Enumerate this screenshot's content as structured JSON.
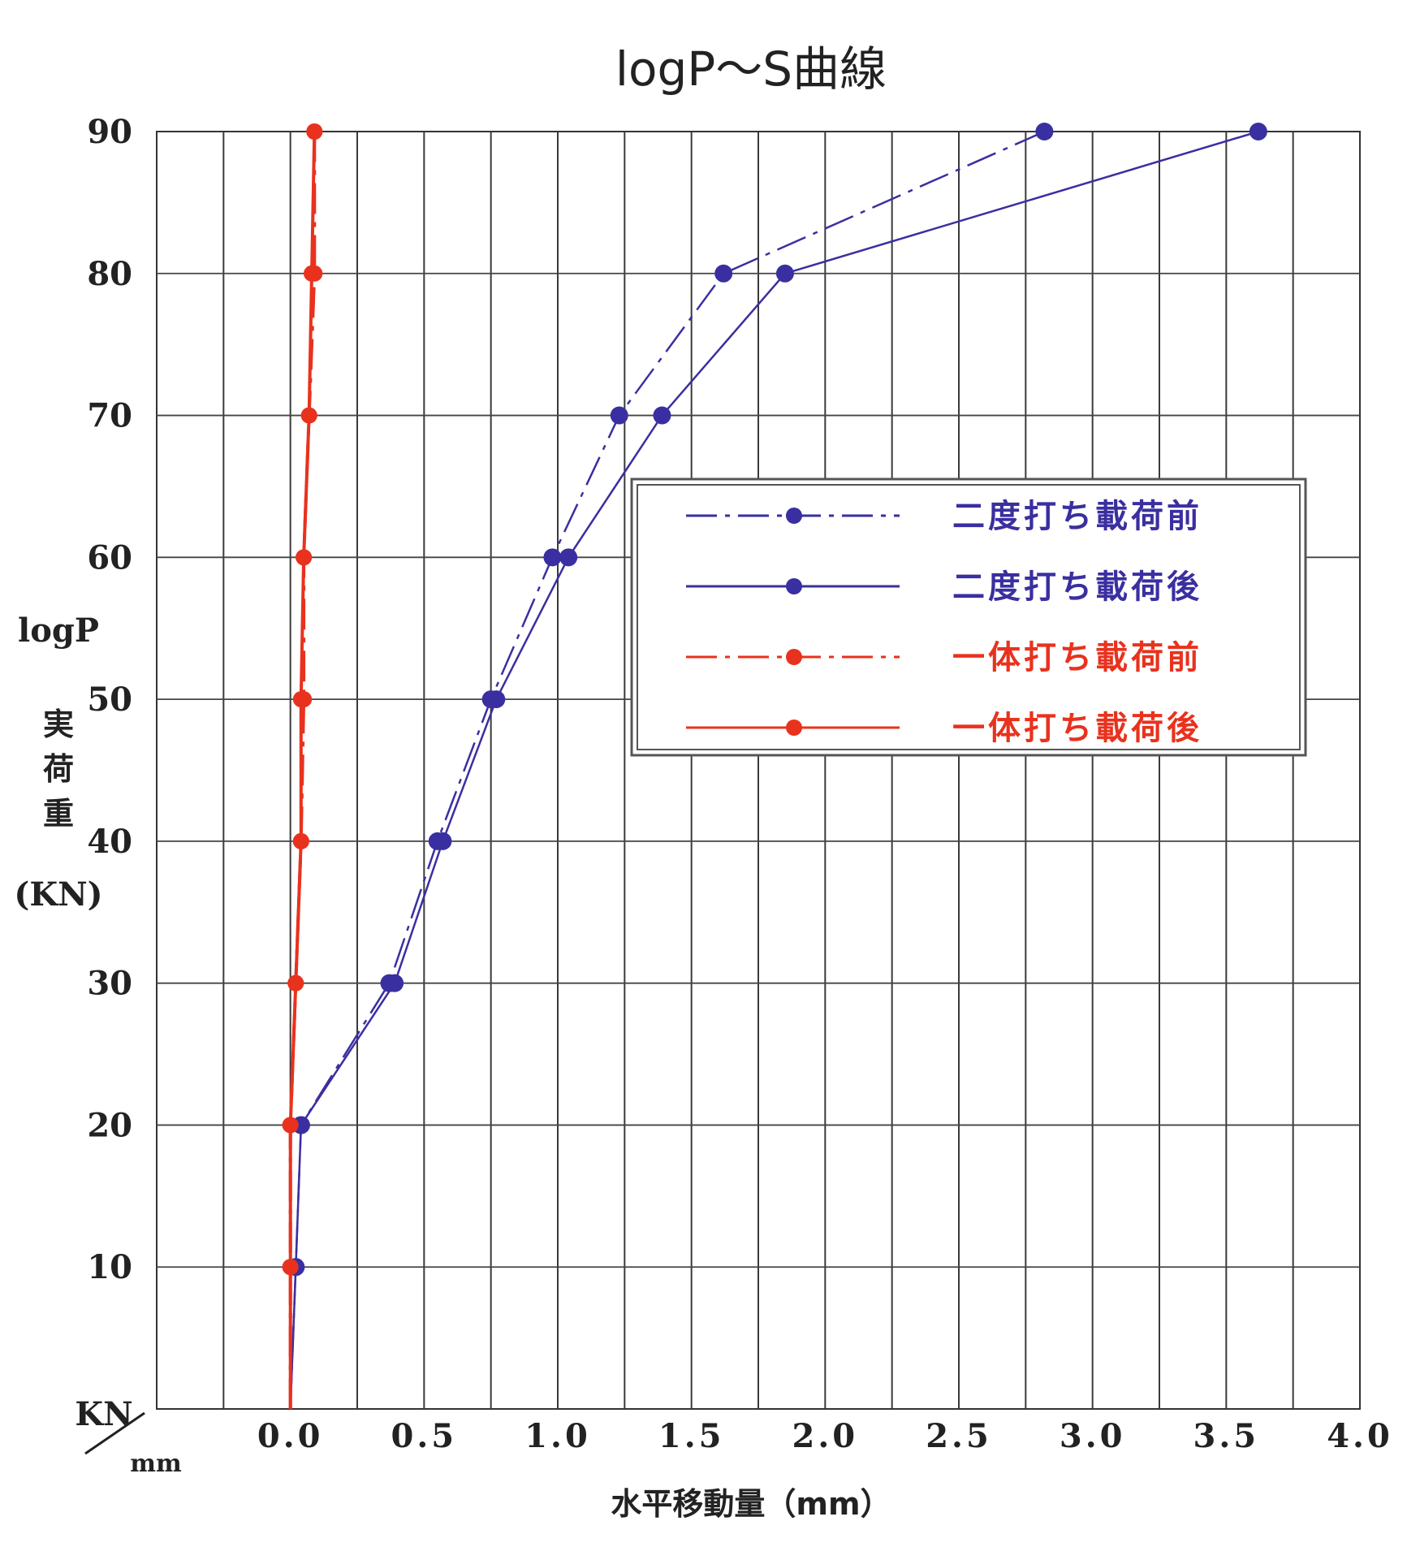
{
  "chart_data": {
    "type": "line",
    "title": "logP～S曲線",
    "xlabel": "水平移動量（mm）",
    "ylabel": [
      "logP",
      "実",
      "荷",
      "重",
      "(KN)"
    ],
    "corner_label": {
      "top": "KN",
      "bottom": "mm"
    },
    "xlim": [
      -0.5,
      4.0
    ],
    "ylim": [
      0,
      90
    ],
    "x_ticks": [
      "0.0",
      "0.5",
      "1.0",
      "1.5",
      "2.0",
      "2.5",
      "3.0",
      "3.5",
      "4.0"
    ],
    "y_ticks": [
      "10",
      "20",
      "30",
      "40",
      "50",
      "60",
      "70",
      "80",
      "90"
    ],
    "grid": true,
    "legend_position": "center-right",
    "series": [
      {
        "name": "二度打ち載荷前",
        "color": "#3a2fa0",
        "style": "dashdot",
        "points": [
          [
            0.0,
            0
          ],
          [
            0.02,
            10
          ],
          [
            0.04,
            20
          ],
          [
            0.37,
            30
          ],
          [
            0.55,
            40
          ],
          [
            0.75,
            50
          ],
          [
            0.98,
            60
          ],
          [
            1.23,
            70
          ],
          [
            1.62,
            80
          ],
          [
            2.82,
            90
          ]
        ]
      },
      {
        "name": "二度打ち載荷後",
        "color": "#3a2fa0",
        "style": "solid",
        "points": [
          [
            0.0,
            0
          ],
          [
            0.02,
            10
          ],
          [
            0.04,
            20
          ],
          [
            0.39,
            30
          ],
          [
            0.57,
            40
          ],
          [
            0.77,
            50
          ],
          [
            1.04,
            60
          ],
          [
            1.39,
            70
          ],
          [
            1.85,
            80
          ],
          [
            3.62,
            90
          ]
        ]
      },
      {
        "name": "一体打ち載荷前",
        "color": "#e8321e",
        "style": "dashdot",
        "points": [
          [
            0.0,
            0
          ],
          [
            0.0,
            10
          ],
          [
            0.0,
            20
          ],
          [
            0.02,
            30
          ],
          [
            0.04,
            40
          ],
          [
            0.05,
            50
          ],
          [
            0.05,
            60
          ],
          [
            0.07,
            70
          ],
          [
            0.09,
            80
          ],
          [
            0.09,
            90
          ]
        ]
      },
      {
        "name": "一体打ち載荷後",
        "color": "#e8321e",
        "style": "solid",
        "points": [
          [
            0.0,
            0
          ],
          [
            0.0,
            10
          ],
          [
            0.0,
            20
          ],
          [
            0.02,
            30
          ],
          [
            0.04,
            40
          ],
          [
            0.04,
            50
          ],
          [
            0.05,
            60
          ],
          [
            0.07,
            70
          ],
          [
            0.08,
            80
          ],
          [
            0.09,
            90
          ]
        ]
      }
    ]
  }
}
